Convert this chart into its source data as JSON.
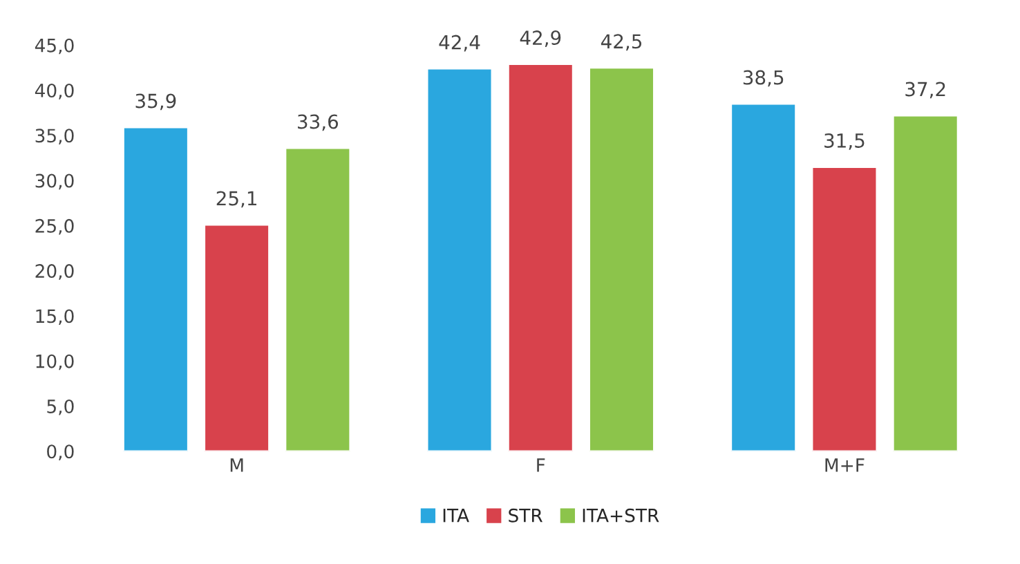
{
  "chart_data": {
    "type": "bar",
    "categories": [
      "M",
      "F",
      "M+F"
    ],
    "series": [
      {
        "name": "ITA",
        "color": "#2aa7df",
        "values": [
          35.9,
          42.4,
          38.5
        ],
        "value_labels": [
          "35,9",
          "42,4",
          "38,5"
        ]
      },
      {
        "name": "STR",
        "color": "#d8424c",
        "values": [
          25.1,
          42.9,
          31.5
        ],
        "value_labels": [
          "25,1",
          "42,9",
          "31,5"
        ]
      },
      {
        "name": "ITA+STR",
        "color": "#8cc44b",
        "values": [
          33.6,
          42.5,
          37.2
        ],
        "value_labels": [
          "33,6",
          "42,5",
          "37,2"
        ]
      }
    ],
    "ylim": [
      0,
      45
    ],
    "yticks": [
      {
        "value": 0,
        "label": "0,0"
      },
      {
        "value": 5,
        "label": "5,0"
      },
      {
        "value": 10,
        "label": "10,0"
      },
      {
        "value": 15,
        "label": "15,0"
      },
      {
        "value": 20,
        "label": "20,0"
      },
      {
        "value": 25,
        "label": "25,0"
      },
      {
        "value": 30,
        "label": "30,0"
      },
      {
        "value": 35,
        "label": "35,0"
      },
      {
        "value": 40,
        "label": "40,0"
      },
      {
        "value": 45,
        "label": "45,0"
      }
    ],
    "grid": false,
    "legend": "bottom"
  }
}
